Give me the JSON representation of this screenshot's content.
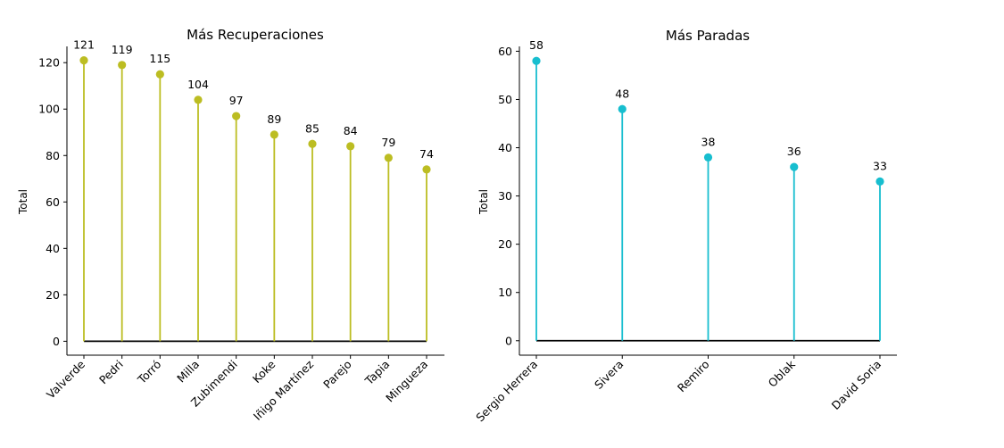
{
  "chart_data": [
    {
      "type": "lollipop",
      "title": "Más Recuperaciones",
      "xlabel": "",
      "ylabel": "Total",
      "categories": [
        "Valverde",
        "Pedri",
        "Torró",
        "Milla",
        "Zubimendi",
        "Koke",
        "Iñigo Martínez",
        "Parejo",
        "Tapia",
        "Mingueza"
      ],
      "values": [
        121,
        119,
        115,
        104,
        97,
        89,
        85,
        84,
        79,
        74
      ],
      "ylim": [
        -6,
        127
      ],
      "yticks": [
        0,
        20,
        40,
        60,
        80,
        100,
        120
      ],
      "color": "#bcbd22",
      "grid": false
    },
    {
      "type": "lollipop",
      "title": "Más Paradas",
      "xlabel": "",
      "ylabel": "Total",
      "categories": [
        "Sergio Herrera",
        "Sivera",
        "Remiro",
        "Oblak",
        "David Soria"
      ],
      "values": [
        58,
        48,
        38,
        36,
        33
      ],
      "ylim": [
        -3,
        61
      ],
      "yticks": [
        0,
        10,
        20,
        30,
        40,
        50,
        60
      ],
      "color": "#17becf",
      "grid": false
    }
  ]
}
